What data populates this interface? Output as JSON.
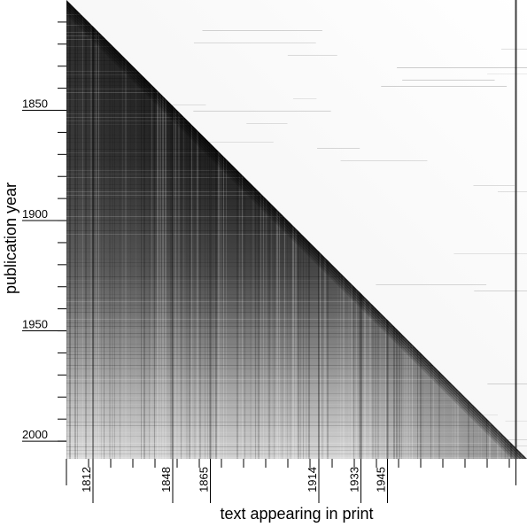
{
  "chart_data": {
    "type": "heatmap",
    "title": "",
    "xlabel": "text appearing in print",
    "ylabel": "publication year",
    "y_range": [
      1800,
      2008
    ],
    "x_range": [
      1800,
      2008
    ],
    "y_tick_labels": [
      {
        "year": 1850,
        "label": "1850"
      },
      {
        "year": 1900,
        "label": "1900"
      },
      {
        "year": 1950,
        "label": "1950"
      },
      {
        "year": 2000,
        "label": "2000"
      }
    ],
    "x_tick_labels": [
      {
        "year": 1812,
        "label": "1812"
      },
      {
        "year": 1848,
        "label": "1848"
      },
      {
        "year": 1865,
        "label": "1865"
      },
      {
        "year": 1914,
        "label": "1914"
      },
      {
        "year": 1933,
        "label": "1933"
      },
      {
        "year": 1945,
        "label": "1945"
      }
    ],
    "minor_tick_step_years": 10,
    "colors": {
      "background": "#ffffff",
      "dense": "#000000"
    },
    "grid": false,
    "legend": "none"
  }
}
